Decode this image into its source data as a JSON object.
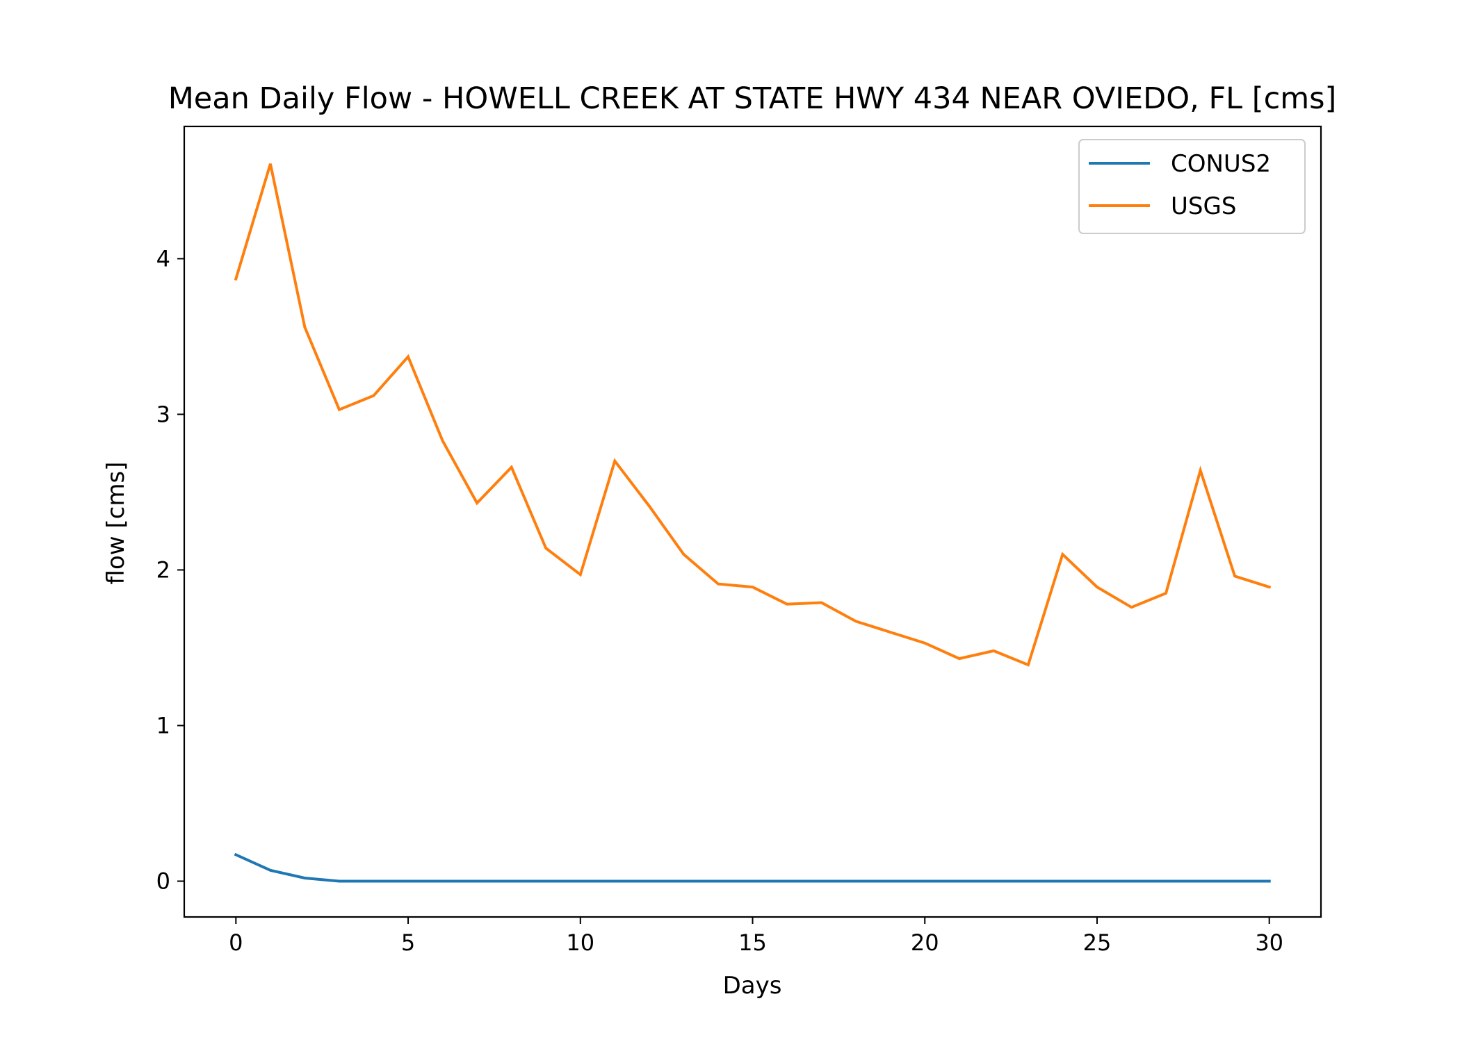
{
  "chart_data": {
    "type": "line",
    "title": "Mean Daily Flow - HOWELL CREEK AT STATE HWY 434 NEAR OVIEDO, FL [cms]",
    "xlabel": "Days",
    "ylabel": "flow [cms]",
    "xlim": [
      -1.5,
      31.5
    ],
    "ylim": [
      -0.23,
      4.85
    ],
    "x_ticks": [
      0,
      5,
      10,
      15,
      20,
      25,
      30
    ],
    "y_ticks": [
      0,
      1,
      2,
      3,
      4
    ],
    "grid": false,
    "legend_position": "top-right",
    "x": [
      0,
      1,
      2,
      3,
      4,
      5,
      6,
      7,
      8,
      9,
      10,
      11,
      12,
      13,
      14,
      15,
      16,
      17,
      18,
      19,
      20,
      21,
      22,
      23,
      24,
      25,
      26,
      27,
      28,
      29,
      30
    ],
    "series": [
      {
        "name": "CONUS2",
        "color": "#1f77b4",
        "values": [
          0.17,
          0.07,
          0.02,
          0.0,
          0.0,
          0.0,
          0.0,
          0.0,
          0.0,
          0.0,
          0.0,
          0.0,
          0.0,
          0.0,
          0.0,
          0.0,
          0.0,
          0.0,
          0.0,
          0.0,
          0.0,
          0.0,
          0.0,
          0.0,
          0.0,
          0.0,
          0.0,
          0.0,
          0.0,
          0.0,
          0.0
        ]
      },
      {
        "name": "USGS",
        "color": "#ff7f0e",
        "values": [
          3.87,
          4.61,
          3.56,
          3.03,
          3.12,
          3.37,
          2.83,
          2.43,
          2.66,
          2.14,
          1.97,
          2.7,
          2.41,
          2.1,
          1.91,
          1.89,
          1.78,
          1.79,
          1.67,
          1.6,
          1.53,
          1.43,
          1.48,
          1.39,
          2.1,
          1.89,
          1.76,
          1.85,
          2.64,
          1.96,
          1.89
        ]
      }
    ]
  }
}
